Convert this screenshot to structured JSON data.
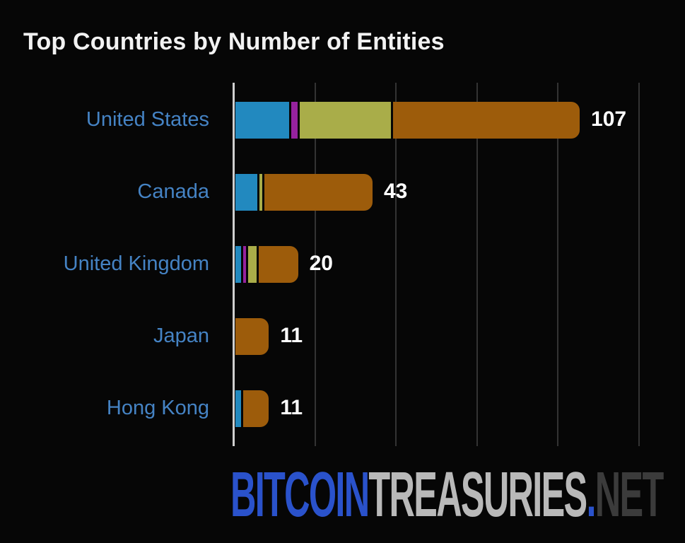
{
  "title": "Top Countries by Number of Entities",
  "chart_data": {
    "type": "bar",
    "orientation": "horizontal",
    "stacked": true,
    "title": "Top Countries by Number of Entities",
    "categories": [
      "United States",
      "Canada",
      "United Kingdom",
      "Japan",
      "Hong Kong"
    ],
    "totals": [
      107,
      43,
      20,
      11,
      11
    ],
    "value_labels": [
      "107",
      "43",
      "20",
      "11",
      "11"
    ],
    "series": [
      {
        "name": "teal-segment",
        "color": "#2289bf",
        "values": [
          17,
          7,
          2,
          0,
          2
        ]
      },
      {
        "name": "magenta-segment",
        "color": "#96229e",
        "values": [
          2,
          0,
          1,
          0,
          0
        ]
      },
      {
        "name": "olive-segment",
        "color": "#a9ad49",
        "values": [
          29,
          1,
          3,
          0,
          0
        ]
      },
      {
        "name": "brown-segment",
        "color": "#9d5c0b",
        "values": [
          59,
          35,
          14,
          11,
          9
        ]
      }
    ],
    "xlim": [
      0,
      137
    ],
    "gridline_values": [
      25,
      50,
      75,
      100,
      125
    ],
    "grid": true,
    "legend": "none",
    "category_label_color": "#4583c4",
    "value_label_color": "#ffffff",
    "gridline_color": "#333333",
    "axis_line_color": "#cfcfcf",
    "background_color": "#060606"
  },
  "watermark": {
    "part1": "BITCOIN",
    "part2": "TREASURIES",
    "dot": ".",
    "part3": "NET",
    "part1_color": "#2a52cb",
    "part2_color": "#b9b9b9",
    "part3_color": "#3b3b3b"
  }
}
